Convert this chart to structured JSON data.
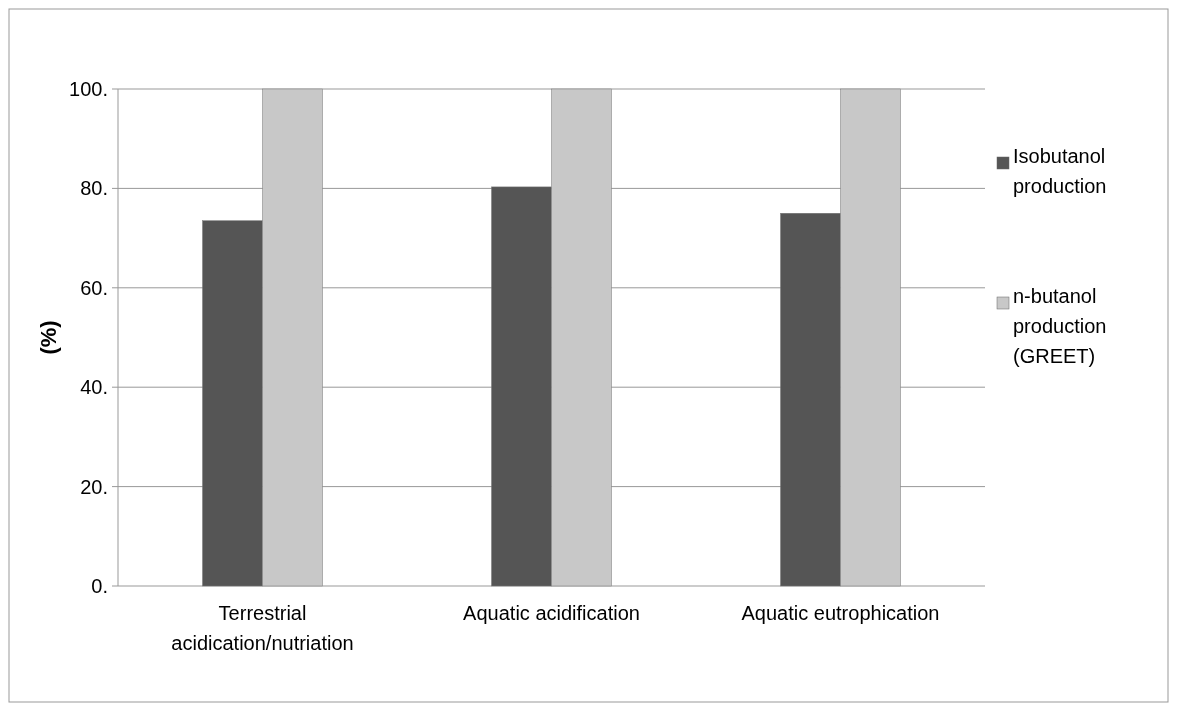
{
  "chart_data": {
    "type": "bar",
    "ylabel": "(%)",
    "categories": [
      "Terrestrial acidication/nutriation",
      "Aquatic acidification",
      "Aquatic eutrophication"
    ],
    "series": [
      {
        "name": "Isobutanol production",
        "color": "#555555",
        "values": [
          73.5,
          80.3,
          75
        ]
      },
      {
        "name": "n-butanol production (GREET)",
        "color": "#c8c8c8",
        "values": [
          100,
          100,
          100
        ]
      }
    ],
    "ylim": [
      0,
      100
    ],
    "yticks": [
      {
        "value": 0,
        "label": "0."
      },
      {
        "value": 20,
        "label": "20."
      },
      {
        "value": 40,
        "label": "40."
      },
      {
        "value": 60,
        "label": "60."
      },
      {
        "value": 80,
        "label": "80."
      },
      {
        "value": 100,
        "label": "100."
      }
    ],
    "grid": "y",
    "legend": "right"
  }
}
